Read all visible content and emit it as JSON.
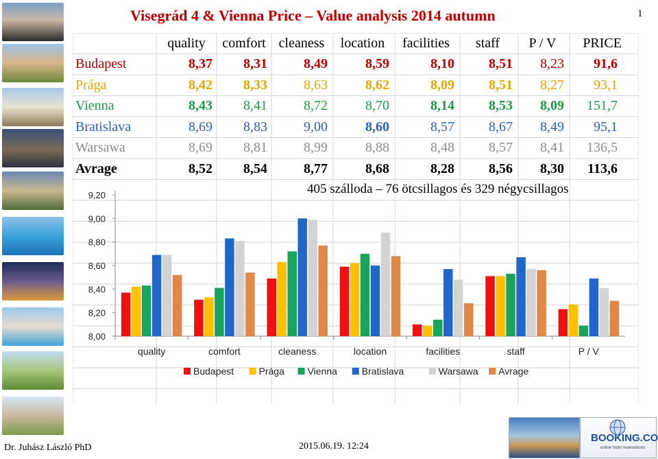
{
  "title": "Visegrád  4 & Vienna Price – Value analysis 2014 autumn",
  "page_number": "1",
  "table": {
    "headers": [
      "",
      "quality",
      "comfort",
      "cleaness",
      "location",
      "facilities",
      "staff",
      "P / V",
      "PRICE"
    ],
    "rows": [
      {
        "name": "Budapest",
        "color": "#c00000",
        "values": [
          "8,37",
          "8,31",
          "8,49",
          "8,59",
          "8,10",
          "8,51",
          "8,23",
          "91,6"
        ],
        "bold": [
          true,
          true,
          true,
          true,
          true,
          true,
          false,
          true
        ]
      },
      {
        "name": "Prága",
        "color": "#e5a800",
        "values": [
          "8,42",
          "8,33",
          "8,63",
          "8,62",
          "8,09",
          "8,51",
          "8,27",
          "93,1"
        ],
        "bold": [
          true,
          true,
          false,
          true,
          true,
          true,
          false,
          false
        ]
      },
      {
        "name": "Vienna",
        "color": "#1a9a4a",
        "values": [
          "8,43",
          "8,41",
          "8,72",
          "8,70",
          "8,14",
          "8,53",
          "8,09",
          "151,7"
        ],
        "bold": [
          true,
          false,
          false,
          false,
          true,
          true,
          true,
          false
        ]
      },
      {
        "name": "Bratislava",
        "color": "#2e5fb8",
        "values": [
          "8,69",
          "8,83",
          "9,00",
          "8,60",
          "8,57",
          "8,67",
          "8,49",
          "95,1"
        ],
        "bold": [
          false,
          false,
          false,
          true,
          false,
          false,
          false,
          false
        ]
      },
      {
        "name": "Warsawa",
        "color": "#8c8c8c",
        "values": [
          "8,69",
          "8,81",
          "8,99",
          "8,88",
          "8,48",
          "8,57",
          "8,41",
          "136,5"
        ],
        "bold": [
          false,
          false,
          false,
          false,
          false,
          false,
          false,
          false
        ]
      },
      {
        "name": "Avrage",
        "color": "#000000",
        "values": [
          "8,52",
          "8,54",
          "8,77",
          "8,68",
          "8,28",
          "8,56",
          "8,30",
          "113,6"
        ],
        "bold": [
          true,
          true,
          true,
          true,
          true,
          true,
          true,
          true
        ]
      }
    ]
  },
  "caption": "405 szálloda – 76 ötcsillagos és 329 négycsillagos",
  "footer": {
    "author": "Dr. Juhász László PhD",
    "date": "2015.06.19. 12:24",
    "logo_text": "BOOKING.COM",
    "logo_sub": "online hotel reservations"
  },
  "chart_data": {
    "type": "bar",
    "categories": [
      "quality",
      "comfort",
      "cleaness",
      "location",
      "facilities",
      "staff",
      "P / V"
    ],
    "ylim": [
      8.0,
      9.2
    ],
    "yticks": [
      "8,00",
      "8,20",
      "8,40",
      "8,60",
      "8,80",
      "9,00",
      "9,20"
    ],
    "legend_position": "bottom",
    "series": [
      {
        "name": "Budapest",
        "color": "#ee1111",
        "values": [
          8.37,
          8.31,
          8.49,
          8.59,
          8.1,
          8.51,
          8.23
        ]
      },
      {
        "name": "Prága",
        "color": "#ffc000",
        "values": [
          8.42,
          8.33,
          8.63,
          8.62,
          8.09,
          8.51,
          8.27
        ]
      },
      {
        "name": "Vienna",
        "color": "#1aa35a",
        "values": [
          8.43,
          8.41,
          8.72,
          8.7,
          8.14,
          8.53,
          8.09
        ]
      },
      {
        "name": "Bratislava",
        "color": "#2167c9",
        "values": [
          8.69,
          8.83,
          9.0,
          8.6,
          8.57,
          8.67,
          8.49
        ]
      },
      {
        "name": "Warsawa",
        "color": "#d3d3d3",
        "values": [
          8.69,
          8.81,
          8.99,
          8.88,
          8.48,
          8.57,
          8.41
        ]
      },
      {
        "name": "Avrage",
        "color": "#e0884a",
        "values": [
          8.52,
          8.54,
          8.77,
          8.68,
          8.28,
          8.56,
          8.3
        ]
      }
    ]
  }
}
